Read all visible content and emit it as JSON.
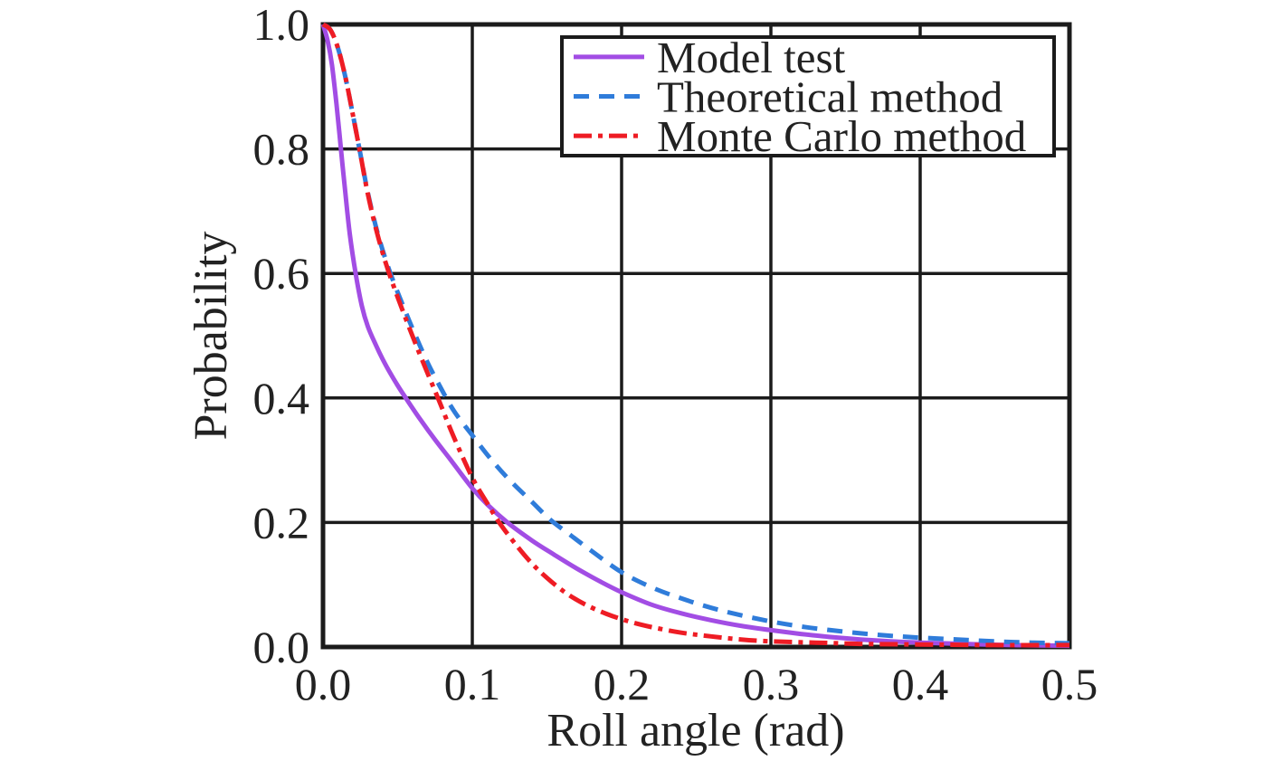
{
  "figure": {
    "background": "#ffffff",
    "axis_color": "#1b1b1b",
    "text_color": "#222222",
    "grid_color": "#1b1b1b"
  },
  "chart_data": {
    "type": "line",
    "xlabel": "Roll angle (rad)",
    "ylabel": "Probability",
    "xlim": [
      0,
      0.5
    ],
    "ylim": [
      0,
      1
    ],
    "grid": true,
    "x_ticks": [
      0.0,
      0.1,
      0.2,
      0.3,
      0.4,
      0.5
    ],
    "x_tick_labels": [
      "0.0",
      "0.1",
      "0.2",
      "0.3",
      "0.4",
      "0.5"
    ],
    "y_ticks": [
      0.0,
      0.2,
      0.4,
      0.6,
      0.8,
      1.0
    ],
    "y_tick_labels": [
      "0.0",
      "0.2",
      "0.4",
      "0.6",
      "0.8",
      "1.0"
    ],
    "legend": {
      "position": "top-right-inside",
      "border": true,
      "background": "#ffffff"
    },
    "series": [
      {
        "name": "Model test",
        "color": "#a24de4",
        "style": "solid",
        "dash": null,
        "points": [
          [
            0.0,
            1.0
          ],
          [
            0.003,
            0.975
          ],
          [
            0.006,
            0.935
          ],
          [
            0.009,
            0.872
          ],
          [
            0.012,
            0.8
          ],
          [
            0.015,
            0.728
          ],
          [
            0.018,
            0.662
          ],
          [
            0.022,
            0.598
          ],
          [
            0.026,
            0.548
          ],
          [
            0.03,
            0.515
          ],
          [
            0.035,
            0.487
          ],
          [
            0.04,
            0.462
          ],
          [
            0.045,
            0.44
          ],
          [
            0.05,
            0.42
          ],
          [
            0.056,
            0.398
          ],
          [
            0.065,
            0.366
          ],
          [
            0.075,
            0.333
          ],
          [
            0.085,
            0.302
          ],
          [
            0.1,
            0.255
          ],
          [
            0.11,
            0.229
          ],
          [
            0.124,
            0.199
          ],
          [
            0.14,
            0.171
          ],
          [
            0.155,
            0.148
          ],
          [
            0.17,
            0.126
          ],
          [
            0.185,
            0.106
          ],
          [
            0.2,
            0.088
          ],
          [
            0.22,
            0.068
          ],
          [
            0.24,
            0.054
          ],
          [
            0.26,
            0.043
          ],
          [
            0.28,
            0.034
          ],
          [
            0.3,
            0.027
          ],
          [
            0.32,
            0.021
          ],
          [
            0.34,
            0.016
          ],
          [
            0.36,
            0.012
          ],
          [
            0.38,
            0.009
          ],
          [
            0.4,
            0.007
          ],
          [
            0.43,
            0.005
          ],
          [
            0.46,
            0.003
          ],
          [
            0.5,
            0.002
          ]
        ]
      },
      {
        "name": "Theoretical method",
        "color": "#2f7cda",
        "style": "dashed",
        "dash": [
          17,
          11
        ],
        "points": [
          [
            0.0,
            1.0
          ],
          [
            0.005,
            0.991
          ],
          [
            0.01,
            0.962
          ],
          [
            0.015,
            0.915
          ],
          [
            0.02,
            0.855
          ],
          [
            0.025,
            0.792
          ],
          [
            0.03,
            0.73
          ],
          [
            0.036,
            0.67
          ],
          [
            0.042,
            0.622
          ],
          [
            0.048,
            0.582
          ],
          [
            0.055,
            0.54
          ],
          [
            0.062,
            0.5
          ],
          [
            0.07,
            0.457
          ],
          [
            0.078,
            0.42
          ],
          [
            0.088,
            0.378
          ],
          [
            0.1,
            0.34
          ],
          [
            0.112,
            0.303
          ],
          [
            0.125,
            0.268
          ],
          [
            0.14,
            0.233
          ],
          [
            0.152,
            0.205
          ],
          [
            0.165,
            0.181
          ],
          [
            0.18,
            0.154
          ],
          [
            0.2,
            0.12
          ],
          [
            0.22,
            0.096
          ],
          [
            0.24,
            0.078
          ],
          [
            0.26,
            0.063
          ],
          [
            0.28,
            0.051
          ],
          [
            0.3,
            0.041
          ],
          [
            0.32,
            0.033
          ],
          [
            0.34,
            0.027
          ],
          [
            0.36,
            0.022
          ],
          [
            0.38,
            0.018
          ],
          [
            0.4,
            0.015
          ],
          [
            0.425,
            0.012
          ],
          [
            0.45,
            0.009
          ],
          [
            0.475,
            0.007
          ],
          [
            0.5,
            0.006
          ]
        ]
      },
      {
        "name": "Monte Carlo method",
        "color": "#ee1c24",
        "style": "dash-dot",
        "dash": [
          20,
          7,
          5,
          7
        ],
        "points": [
          [
            0.0,
            1.0
          ],
          [
            0.005,
            0.991
          ],
          [
            0.01,
            0.962
          ],
          [
            0.015,
            0.915
          ],
          [
            0.02,
            0.855
          ],
          [
            0.025,
            0.792
          ],
          [
            0.03,
            0.728
          ],
          [
            0.036,
            0.667
          ],
          [
            0.042,
            0.617
          ],
          [
            0.048,
            0.575
          ],
          [
            0.055,
            0.53
          ],
          [
            0.062,
            0.487
          ],
          [
            0.07,
            0.44
          ],
          [
            0.078,
            0.394
          ],
          [
            0.088,
            0.335
          ],
          [
            0.1,
            0.272
          ],
          [
            0.11,
            0.231
          ],
          [
            0.118,
            0.2
          ],
          [
            0.13,
            0.162
          ],
          [
            0.14,
            0.134
          ],
          [
            0.15,
            0.111
          ],
          [
            0.162,
            0.088
          ],
          [
            0.175,
            0.069
          ],
          [
            0.19,
            0.053
          ],
          [
            0.205,
            0.041
          ],
          [
            0.22,
            0.032
          ],
          [
            0.24,
            0.023
          ],
          [
            0.26,
            0.017
          ],
          [
            0.28,
            0.012
          ],
          [
            0.3,
            0.009
          ],
          [
            0.33,
            0.007
          ],
          [
            0.36,
            0.005
          ],
          [
            0.4,
            0.004
          ],
          [
            0.45,
            0.003
          ],
          [
            0.5,
            0.003
          ]
        ]
      }
    ]
  }
}
